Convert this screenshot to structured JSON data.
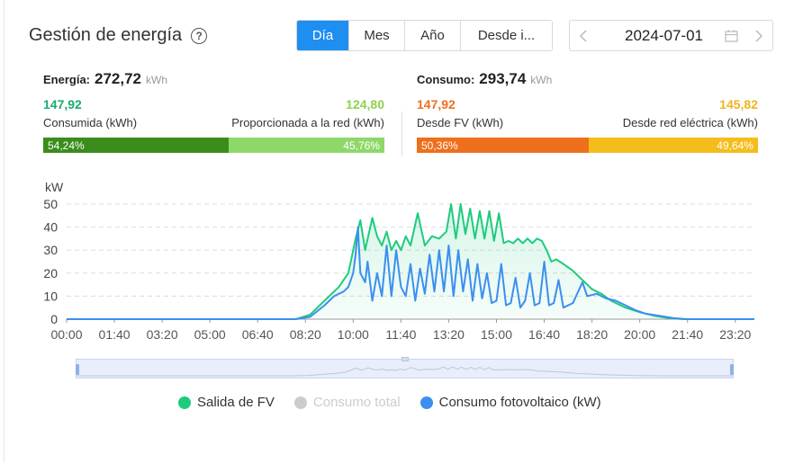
{
  "header": {
    "title": "Gestión de energía",
    "help_icon": "question-circle-icon"
  },
  "period_tabs": [
    {
      "label": "Día",
      "active": true
    },
    {
      "label": "Mes",
      "active": false
    },
    {
      "label": "Año",
      "active": false
    },
    {
      "label": "Desde i...",
      "active": false
    }
  ],
  "date_picker": {
    "value": "2024-07-01",
    "prev_icon": "chevron-left-icon",
    "next_icon": "chevron-right-icon",
    "calendar_icon": "calendar-icon"
  },
  "energy": {
    "label": "Energía:",
    "value": "272,72",
    "unit": "kWh",
    "consumed": {
      "value": "147,92",
      "label": "Consumida (kWh)",
      "percent_label": "54,24%",
      "percent": 54.24,
      "color": "#3a8d1a",
      "text_color": "#1aab6d"
    },
    "grid": {
      "value": "124,80",
      "label": "Proporcionada a la red (kWh)",
      "percent_label": "45,76%",
      "percent": 45.76,
      "color": "#8ed86a",
      "text_color": "#8fd14f"
    }
  },
  "consumption": {
    "label": "Consumo:",
    "value": "293,74",
    "unit": "kWh",
    "from_pv": {
      "value": "147,92",
      "label": "Desde FV (kWh)",
      "percent_label": "50,36%",
      "percent": 50.36,
      "color": "#ee6f1c",
      "text_color": "#ee6f1c"
    },
    "from_grid": {
      "value": "145,82",
      "label": "Desde red eléctrica (kWh)",
      "percent_label": "49,64%",
      "percent": 49.64,
      "color": "#f4bd1c",
      "text_color": "#f2b31b"
    }
  },
  "chart_data": {
    "type": "area",
    "ylabel": "kW",
    "ylim": [
      0,
      50
    ],
    "yticks": [
      0,
      10,
      20,
      30,
      40,
      50
    ],
    "xticks": [
      "00:00",
      "01:40",
      "03:20",
      "05:00",
      "06:40",
      "08:20",
      "10:00",
      "11:40",
      "13:20",
      "15:00",
      "16:40",
      "18:20",
      "20:00",
      "21:40",
      "23:20"
    ],
    "grid": true,
    "legend_position": "bottom",
    "series": [
      {
        "name": "Salida de FV",
        "color": "#1ecb7d",
        "visible": true,
        "points": [
          [
            "00:00",
            0
          ],
          [
            "08:00",
            0
          ],
          [
            "08:30",
            2
          ],
          [
            "09:00",
            8
          ],
          [
            "09:30",
            14
          ],
          [
            "09:50",
            20
          ],
          [
            "10:05",
            35
          ],
          [
            "10:15",
            43
          ],
          [
            "10:25",
            30
          ],
          [
            "10:40",
            44
          ],
          [
            "10:50",
            36
          ],
          [
            "11:00",
            32
          ],
          [
            "11:10",
            38
          ],
          [
            "11:20",
            30
          ],
          [
            "11:30",
            34
          ],
          [
            "11:40",
            30
          ],
          [
            "11:50",
            36
          ],
          [
            "12:00",
            32
          ],
          [
            "12:15",
            46
          ],
          [
            "12:30",
            32
          ],
          [
            "12:45",
            36
          ],
          [
            "13:00",
            35
          ],
          [
            "13:15",
            38
          ],
          [
            "13:25",
            50
          ],
          [
            "13:35",
            35
          ],
          [
            "13:45",
            50
          ],
          [
            "13:55",
            37
          ],
          [
            "14:05",
            48
          ],
          [
            "14:15",
            35
          ],
          [
            "14:25",
            47
          ],
          [
            "14:35",
            35
          ],
          [
            "14:45",
            47
          ],
          [
            "14:55",
            34
          ],
          [
            "15:05",
            46
          ],
          [
            "15:15",
            33
          ],
          [
            "15:25",
            34
          ],
          [
            "15:35",
            33
          ],
          [
            "15:45",
            35
          ],
          [
            "15:55",
            33
          ],
          [
            "16:05",
            35
          ],
          [
            "16:15",
            33
          ],
          [
            "16:25",
            35
          ],
          [
            "16:35",
            34
          ],
          [
            "16:45",
            30
          ],
          [
            "16:55",
            25
          ],
          [
            "17:05",
            26
          ],
          [
            "17:20",
            24
          ],
          [
            "17:40",
            21
          ],
          [
            "18:00",
            17
          ],
          [
            "18:20",
            13
          ],
          [
            "18:40",
            11
          ],
          [
            "19:00",
            8
          ],
          [
            "19:30",
            5
          ],
          [
            "20:00",
            3
          ],
          [
            "20:30",
            1.5
          ],
          [
            "21:00",
            0.5
          ],
          [
            "21:30",
            0
          ],
          [
            "24:00",
            0
          ]
        ]
      },
      {
        "name": "Consumo total",
        "color": "#cccccc",
        "visible": false,
        "points": []
      },
      {
        "name": "Consumo fotovoltaico (kW)",
        "color": "#3b8ff0",
        "visible": true,
        "points": [
          [
            "00:00",
            0
          ],
          [
            "08:00",
            0
          ],
          [
            "08:30",
            1
          ],
          [
            "09:00",
            6
          ],
          [
            "09:20",
            10
          ],
          [
            "09:40",
            12
          ],
          [
            "09:50",
            14
          ],
          [
            "10:00",
            20
          ],
          [
            "10:05",
            28
          ],
          [
            "10:10",
            40
          ],
          [
            "10:15",
            20
          ],
          [
            "10:25",
            16
          ],
          [
            "10:30",
            25
          ],
          [
            "10:40",
            8
          ],
          [
            "10:50",
            20
          ],
          [
            "11:00",
            10
          ],
          [
            "11:10",
            32
          ],
          [
            "11:20",
            10
          ],
          [
            "11:30",
            30
          ],
          [
            "11:40",
            14
          ],
          [
            "11:50",
            10
          ],
          [
            "12:00",
            24
          ],
          [
            "12:10",
            8
          ],
          [
            "12:20",
            22
          ],
          [
            "12:30",
            11
          ],
          [
            "12:40",
            28
          ],
          [
            "12:50",
            12
          ],
          [
            "13:00",
            30
          ],
          [
            "13:10",
            12
          ],
          [
            "13:20",
            32
          ],
          [
            "13:30",
            10
          ],
          [
            "13:40",
            30
          ],
          [
            "13:50",
            12
          ],
          [
            "14:00",
            26
          ],
          [
            "14:10",
            8
          ],
          [
            "14:20",
            24
          ],
          [
            "14:30",
            9
          ],
          [
            "14:40",
            20
          ],
          [
            "14:50",
            7
          ],
          [
            "15:00",
            8
          ],
          [
            "15:10",
            24
          ],
          [
            "15:20",
            6
          ],
          [
            "15:30",
            7
          ],
          [
            "15:40",
            18
          ],
          [
            "15:50",
            5
          ],
          [
            "16:00",
            8
          ],
          [
            "16:10",
            20
          ],
          [
            "16:20",
            6
          ],
          [
            "16:30",
            7
          ],
          [
            "16:40",
            25
          ],
          [
            "16:50",
            6
          ],
          [
            "17:00",
            7
          ],
          [
            "17:10",
            17
          ],
          [
            "17:20",
            5
          ],
          [
            "17:40",
            7
          ],
          [
            "18:00",
            16
          ],
          [
            "18:10",
            10
          ],
          [
            "18:30",
            11
          ],
          [
            "18:50",
            9
          ],
          [
            "19:10",
            8
          ],
          [
            "19:30",
            6
          ],
          [
            "19:50",
            4
          ],
          [
            "20:10",
            2.5
          ],
          [
            "20:40",
            1.5
          ],
          [
            "21:10",
            0.5
          ],
          [
            "21:40",
            0
          ],
          [
            "24:00",
            0
          ]
        ]
      }
    ]
  },
  "zoom_slider": {
    "start_percent": 0,
    "end_percent": 100
  }
}
